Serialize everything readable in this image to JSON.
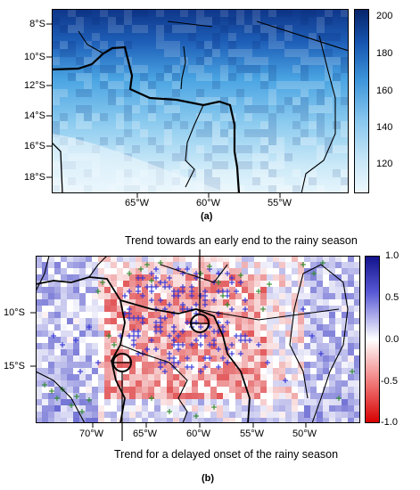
{
  "panel_a": {
    "label": "(a)",
    "y_ticks": [
      "8°S",
      "10°S",
      "12°S",
      "14°S",
      "16°S",
      "18°S"
    ],
    "x_ticks": [
      "65°W",
      "60°W",
      "55°W"
    ],
    "colorbar_ticks": [
      "200",
      "180",
      "160",
      "140",
      "120"
    ],
    "colors": {
      "low": "#eaf6fc",
      "mid": "#56b4ea",
      "high": "#0b2f80"
    }
  },
  "panel_b": {
    "label": "(b)",
    "y_ticks": [
      "10°S",
      "15°S"
    ],
    "x_ticks": [
      "70°W",
      "65°W",
      "60°W",
      "55°W",
      "50°W"
    ],
    "colorbar_ticks": [
      "1.0",
      "0.5",
      "0.0",
      "-0.5",
      "-1.0"
    ],
    "colors": {
      "negative": "#d7191c",
      "zero": "#ffffff",
      "positive": "#1f1fb4",
      "plus_blue": "#3434d8",
      "plus_green": "#2e8b2e"
    },
    "annotation_top": "Trend towards an early end to the rainy season",
    "annotation_bottom": "Trend for a delayed onset of the rainy season"
  }
}
